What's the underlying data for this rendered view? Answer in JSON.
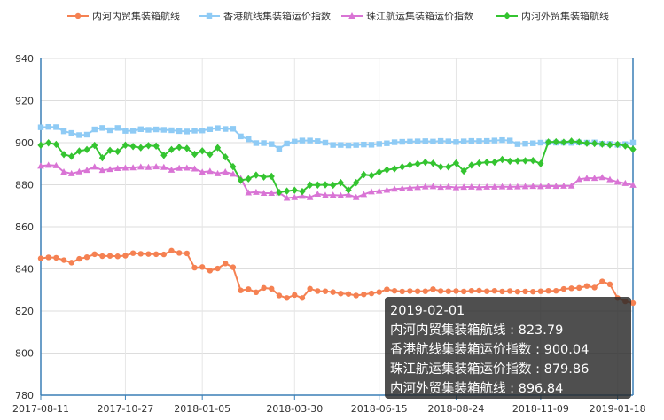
{
  "chart_data": {
    "type": "line",
    "x": [
      "2017-08-11",
      "2017-08-18",
      "2017-08-25",
      "2017-09-01",
      "2017-09-08",
      "2017-09-15",
      "2017-09-22",
      "2017-09-29",
      "2017-10-06",
      "2017-10-13",
      "2017-10-20",
      "2017-10-27",
      "2017-11-03",
      "2017-11-10",
      "2017-11-17",
      "2017-11-24",
      "2017-12-01",
      "2017-12-08",
      "2017-12-15",
      "2017-12-22",
      "2017-12-29",
      "2018-01-05",
      "2018-01-12",
      "2018-01-19",
      "2018-01-26",
      "2018-02-02",
      "2018-02-09",
      "2018-02-16",
      "2018-02-23",
      "2018-03-02",
      "2018-03-09",
      "2018-03-16",
      "2018-03-23",
      "2018-03-30",
      "2018-04-06",
      "2018-04-13",
      "2018-04-20",
      "2018-04-27",
      "2018-05-04",
      "2018-05-11",
      "2018-05-18",
      "2018-05-25",
      "2018-06-01",
      "2018-06-08",
      "2018-06-15",
      "2018-06-22",
      "2018-06-29",
      "2018-07-06",
      "2018-07-13",
      "2018-07-20",
      "2018-07-27",
      "2018-08-03",
      "2018-08-10",
      "2018-08-17",
      "2018-08-24",
      "2018-08-31",
      "2018-09-07",
      "2018-09-14",
      "2018-09-21",
      "2018-09-28",
      "2018-10-05",
      "2018-10-12",
      "2018-10-19",
      "2018-10-26",
      "2018-11-02",
      "2018-11-09",
      "2018-11-16",
      "2018-11-23",
      "2018-11-30",
      "2018-12-07",
      "2018-12-14",
      "2018-12-21",
      "2018-12-28",
      "2019-01-04",
      "2019-01-11",
      "2019-01-18",
      "2019-01-25",
      "2019-02-01"
    ],
    "x_tick_labels": [
      "2017-08-11",
      "2017-10-27",
      "2018-01-05",
      "2018-03-30",
      "2018-06-15",
      "2018-08-24",
      "2018-11-09",
      "2019-01-18"
    ],
    "ylim": [
      780,
      940
    ],
    "y_ticks": [
      780,
      800,
      820,
      840,
      860,
      880,
      900,
      920,
      940
    ],
    "grid": true,
    "legend": "top",
    "series": [
      {
        "name": "内河内贸集装箱航线",
        "color": "#f58152",
        "marker": "circle",
        "values": [
          845.0,
          845.5,
          845.3,
          844.2,
          843.0,
          844.8,
          845.6,
          847.0,
          846.1,
          846.2,
          846.0,
          846.3,
          847.5,
          847.2,
          847.1,
          847.0,
          846.9,
          848.7,
          847.6,
          847.4,
          840.6,
          840.9,
          839.2,
          840.2,
          842.6,
          840.8,
          829.8,
          830.4,
          828.9,
          831.0,
          830.6,
          827.4,
          826.2,
          827.6,
          826.2,
          830.6,
          829.5,
          829.4,
          829.0,
          828.3,
          828.1,
          827.4,
          827.9,
          828.4,
          829.0,
          830.3,
          829.6,
          829.3,
          829.5,
          829.4,
          829.4,
          830.4,
          829.5,
          829.4,
          829.5,
          829.3,
          829.6,
          829.7,
          829.4,
          829.6,
          829.3,
          829.5,
          829.2,
          829.3,
          829.2,
          829.4,
          829.6,
          829.6,
          830.5,
          830.8,
          831.0,
          831.9,
          831.2,
          834.1,
          832.7,
          826.2,
          824.6,
          823.79
        ]
      },
      {
        "name": "香港航线集装箱运价指数",
        "color": "#8fcbf5",
        "marker": "square",
        "values": [
          907.3,
          907.5,
          907.4,
          905.4,
          904.6,
          903.6,
          903.8,
          906.3,
          907.0,
          905.9,
          907.0,
          905.6,
          905.7,
          906.4,
          906.1,
          906.3,
          906.1,
          905.9,
          905.5,
          905.3,
          905.7,
          905.8,
          906.4,
          906.9,
          906.5,
          906.6,
          903.0,
          901.6,
          899.8,
          899.8,
          899.3,
          897.1,
          899.6,
          900.5,
          901.0,
          901.0,
          900.7,
          900.0,
          898.9,
          898.9,
          898.7,
          898.9,
          899.1,
          899.0,
          899.4,
          899.7,
          900.2,
          900.4,
          900.5,
          900.6,
          900.7,
          900.5,
          900.8,
          900.6,
          900.3,
          900.6,
          900.8,
          900.7,
          900.8,
          901.0,
          901.2,
          901.0,
          899.3,
          899.5,
          899.7,
          900.0,
          900.1,
          900.0,
          900.0,
          899.9,
          900.1,
          900.0,
          900.1,
          899.5,
          899.4,
          899.0,
          899.3,
          900.04
        ]
      },
      {
        "name": "珠江航运集装箱运价指数",
        "color": "#d974d5",
        "marker": "triangle",
        "values": [
          888.9,
          889.3,
          889.1,
          886.1,
          885.3,
          886.2,
          886.9,
          888.5,
          886.9,
          887.3,
          887.8,
          888.0,
          888.1,
          888.5,
          888.3,
          888.6,
          888.3,
          887.0,
          887.9,
          888.0,
          887.6,
          886.0,
          886.4,
          885.3,
          886.1,
          885.1,
          883.0,
          876.2,
          876.5,
          876.0,
          876.0,
          876.2,
          873.7,
          874.0,
          874.6,
          874.0,
          875.6,
          875.0,
          875.1,
          874.9,
          875.3,
          874.0,
          875.4,
          876.7,
          877.0,
          877.5,
          878.0,
          878.2,
          878.6,
          878.8,
          879.1,
          879.2,
          878.9,
          879.1,
          878.7,
          878.9,
          879.0,
          878.8,
          879.0,
          879.0,
          879.1,
          879.0,
          879.1,
          879.2,
          879.3,
          879.2,
          879.4,
          879.3,
          879.4,
          879.5,
          882.6,
          883.1,
          883.1,
          883.5,
          882.5,
          881.3,
          880.7,
          879.86
        ]
      },
      {
        "name": "内河外贸集装箱航线",
        "color": "#34c430",
        "marker": "diamond",
        "values": [
          898.8,
          899.9,
          899.2,
          894.4,
          893.5,
          896.0,
          896.7,
          898.7,
          892.8,
          896.3,
          895.8,
          898.8,
          898.2,
          897.6,
          898.6,
          898.4,
          894.0,
          896.7,
          897.8,
          897.3,
          894.5,
          896.1,
          894.4,
          897.6,
          893.2,
          888.6,
          882.1,
          882.8,
          884.6,
          883.7,
          884.0,
          876.4,
          877.0,
          877.4,
          876.8,
          879.9,
          879.9,
          880.0,
          879.8,
          881.0,
          877.5,
          881.0,
          884.8,
          884.4,
          886.0,
          887.1,
          887.6,
          888.5,
          889.4,
          889.9,
          890.7,
          890.2,
          888.5,
          888.5,
          890.3,
          886.5,
          889.3,
          890.3,
          890.7,
          890.7,
          892.0,
          891.2,
          891.3,
          891.4,
          891.5,
          890.0,
          900.3,
          900.4,
          900.2,
          900.7,
          900.3,
          899.7,
          899.6,
          899.3,
          899.0,
          899.2,
          898.5,
          896.84
        ]
      }
    ]
  },
  "tooltip": {
    "date": "2019-02-01",
    "rows": [
      {
        "label": "内河内贸集装箱航线",
        "value": "823.79"
      },
      {
        "label": "香港航线集装箱运价指数",
        "value": "900.04"
      },
      {
        "label": "珠江航运集装箱运价指数",
        "value": "879.86"
      },
      {
        "label": "内河外贸集装箱航线",
        "value": "896.84"
      }
    ]
  }
}
